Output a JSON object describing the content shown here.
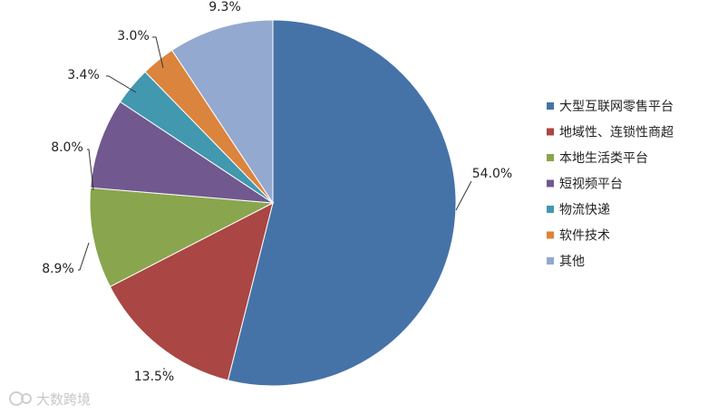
{
  "chart_data": {
    "type": "pie",
    "categories": [
      "大型互联网零售平台",
      "地域性、连锁性商超",
      "本地生活类平台",
      "短视频平台",
      "物流快递",
      "软件技术",
      "其他"
    ],
    "values": [
      54.0,
      13.5,
      8.9,
      8.0,
      3.4,
      3.0,
      9.3
    ],
    "labels": [
      "54.0%",
      "13.5%",
      "8.9%",
      "8.0%",
      "3.4%",
      "3.0%",
      "9.3%"
    ],
    "colors": [
      "#4673a7",
      "#aa4643",
      "#89a54e",
      "#71588f",
      "#4198af",
      "#db843d",
      "#93a9cf"
    ],
    "legend": "right",
    "start": "12 o'clock, clockwise"
  },
  "watermark": {
    "text": "大数跨境"
  }
}
